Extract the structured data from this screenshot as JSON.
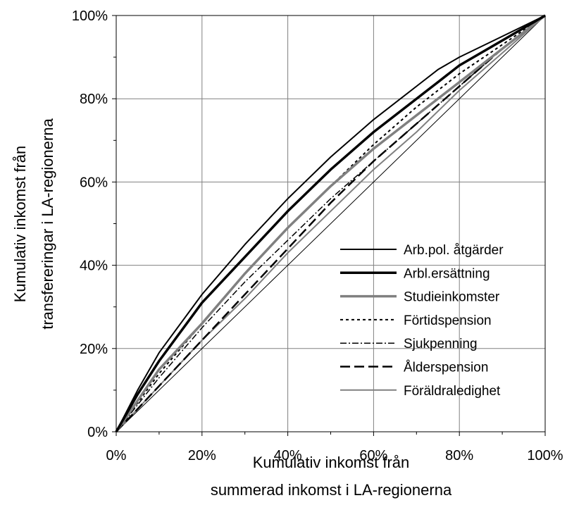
{
  "chart_data": {
    "type": "line",
    "xlabel": [
      "Kumulativ inkomst från",
      "summerad inkomst i LA-regionerna"
    ],
    "ylabel": [
      "Kumulativ inkomst från",
      "transfereringar i LA-regionerna"
    ],
    "x_ticks": [
      "0%",
      "20%",
      "40%",
      "60%",
      "80%",
      "100%"
    ],
    "y_ticks": [
      "0%",
      "20%",
      "40%",
      "60%",
      "80%",
      "100%"
    ],
    "xlim": [
      0,
      100
    ],
    "ylim": [
      0,
      100
    ],
    "grid": true,
    "legend_position": "bottom-right",
    "series": [
      {
        "name": "Arb.pol. åtgärder",
        "color": "#000000",
        "style": "solid-thin",
        "x": [
          0,
          5,
          10,
          20,
          30,
          40,
          50,
          60,
          70,
          75,
          80,
          90,
          100
        ],
        "y": [
          0,
          10,
          19,
          33,
          45,
          56,
          66,
          75,
          83,
          87,
          90,
          95,
          100
        ]
      },
      {
        "name": "Arbl.ersättning",
        "color": "#000000",
        "style": "solid-thick",
        "x": [
          0,
          5,
          10,
          20,
          30,
          40,
          50,
          60,
          70,
          75,
          80,
          90,
          100
        ],
        "y": [
          0,
          9,
          17,
          31,
          42,
          53,
          63,
          72,
          80,
          84,
          88,
          94,
          100
        ]
      },
      {
        "name": "Studieinkomster",
        "color": "#808080",
        "style": "solid-thick",
        "x": [
          0,
          10,
          20,
          30,
          40,
          50,
          60,
          70,
          80,
          90,
          100
        ],
        "y": [
          0,
          15,
          26,
          38,
          49,
          59,
          68,
          76,
          84,
          92,
          100
        ]
      },
      {
        "name": "Förtidspension",
        "color": "#000000",
        "style": "dotted",
        "x": [
          0,
          10,
          20,
          30,
          40,
          50,
          60,
          70,
          80,
          90,
          100
        ],
        "y": [
          0,
          14,
          26,
          38,
          49,
          59,
          69,
          78,
          86,
          93,
          100
        ]
      },
      {
        "name": "Sjukpenning",
        "color": "#000000",
        "style": "dash-dot",
        "x": [
          0,
          10,
          20,
          30,
          40,
          50,
          60,
          70,
          80,
          90,
          100
        ],
        "y": [
          0,
          13,
          25,
          36,
          46,
          56,
          65,
          74,
          83,
          92,
          100
        ]
      },
      {
        "name": "Ålderspension",
        "color": "#000000",
        "style": "dashed",
        "x": [
          0,
          10,
          20,
          30,
          40,
          50,
          60,
          70,
          80,
          90,
          100
        ],
        "y": [
          0,
          11,
          22,
          33,
          44,
          55,
          65,
          74,
          83,
          92,
          100
        ]
      },
      {
        "name": "Föräldraledighet",
        "color": "#808080",
        "style": "solid-thin",
        "x": [
          0,
          10,
          20,
          30,
          40,
          50,
          60,
          70,
          80,
          90,
          100
        ],
        "y": [
          0,
          11,
          22,
          32,
          43,
          53,
          63,
          72,
          82,
          91,
          100
        ]
      },
      {
        "name": "",
        "color": "#000000",
        "style": "solid-hair",
        "x": [
          0,
          100
        ],
        "y": [
          0,
          100
        ]
      }
    ]
  }
}
